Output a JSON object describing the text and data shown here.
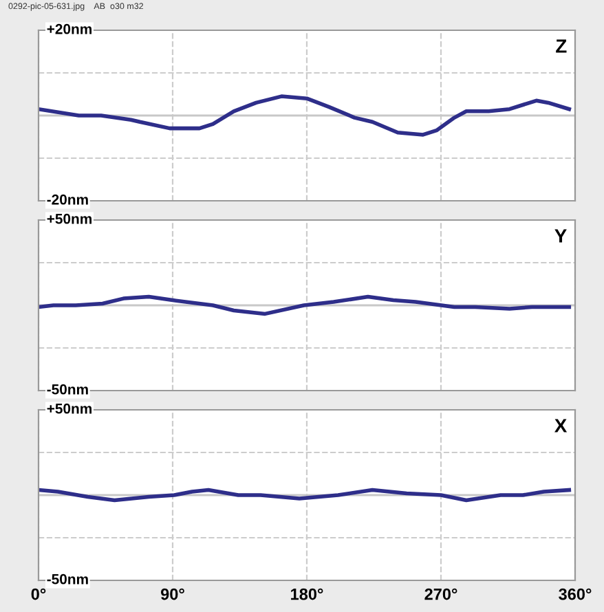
{
  "chart_data": [
    {
      "type": "line",
      "title": "Z",
      "annotations": [
        "0292-pic-05-631.jpg    AB  o30 m32"
      ],
      "tick_labels": "y",
      "grid": true,
      "xlim": [
        0,
        360
      ],
      "ylim": [
        -20,
        20
      ],
      "yticks": [
        {
          "value": 20,
          "label": "+20nm"
        },
        {
          "value": 10,
          "label": null
        },
        {
          "value": -10,
          "label": null
        },
        {
          "value": -20,
          "label": "-20nm"
        }
      ],
      "xticks": [
        {
          "value": 0,
          "label": null
        },
        {
          "value": 90,
          "label": null
        },
        {
          "value": 180,
          "label": null
        },
        {
          "value": 270,
          "label": null
        },
        {
          "value": 360,
          "label": null
        }
      ],
      "ref_lines": [
        {
          "axis": "y",
          "value": 0,
          "color": "#c8c8c8"
        }
      ],
      "x": [
        0,
        27,
        42,
        62,
        68,
        88,
        108,
        117,
        131,
        146,
        163,
        180,
        195,
        212,
        224,
        241,
        258,
        267,
        279,
        287,
        302,
        316,
        334,
        342,
        356
      ],
      "series": [
        {
          "color": "#2e2e8a",
          "values": [
            1.5,
            0,
            0,
            -1,
            -1.5,
            -3,
            -3,
            -2,
            1,
            3,
            4.5,
            4,
            2,
            -0.5,
            -1.5,
            -4,
            -4.5,
            -3.5,
            -0.5,
            1,
            1,
            1.5,
            3.5,
            3,
            1.5
          ]
        }
      ]
    },
    {
      "type": "line",
      "title": "Y",
      "tick_labels": "y",
      "grid": true,
      "xlim": [
        0,
        360
      ],
      "ylim": [
        -50,
        50
      ],
      "yticks": [
        {
          "value": 50,
          "label": "+50nm"
        },
        {
          "value": 25,
          "label": null
        },
        {
          "value": -25,
          "label": null
        },
        {
          "value": -50,
          "label": "-50nm"
        }
      ],
      "xticks": [
        {
          "value": 0,
          "label": null
        },
        {
          "value": 90,
          "label": null
        },
        {
          "value": 180,
          "label": null
        },
        {
          "value": 270,
          "label": null
        },
        {
          "value": 360,
          "label": null
        }
      ],
      "ref_lines": [
        {
          "axis": "y",
          "value": 0,
          "color": "#c8c8c8"
        }
      ],
      "x": [
        0,
        10,
        25,
        43,
        57,
        74,
        90,
        117,
        131,
        152,
        178,
        198,
        221,
        238,
        253,
        279,
        293,
        316,
        331,
        356
      ],
      "series": [
        {
          "color": "#2e2e8a",
          "values": [
            -1,
            0,
            0,
            1,
            4,
            5,
            3,
            0,
            -3,
            -5,
            0,
            2,
            5,
            3,
            2,
            -1,
            -1,
            -2,
            -1,
            -1
          ]
        }
      ]
    },
    {
      "type": "line",
      "title": "X",
      "grid": true,
      "xlim": [
        0,
        360
      ],
      "ylim": [
        -50,
        50
      ],
      "yticks": [
        {
          "value": 50,
          "label": "+50nm"
        },
        {
          "value": 25,
          "label": null
        },
        {
          "value": -25,
          "label": null
        },
        {
          "value": -50,
          "label": "-50nm"
        }
      ],
      "xticks": [
        {
          "value": 0,
          "label": "0°"
        },
        {
          "value": 90,
          "label": "90°"
        },
        {
          "value": 180,
          "label": "180°"
        },
        {
          "value": 270,
          "label": "270°"
        },
        {
          "value": 360,
          "label": "360°"
        }
      ],
      "ref_lines": [
        {
          "axis": "y",
          "value": 0,
          "color": "#c8c8c8"
        }
      ],
      "x": [
        0,
        13,
        33,
        51,
        74,
        91,
        103,
        114,
        134,
        149,
        175,
        201,
        224,
        247,
        270,
        287,
        310,
        325,
        339,
        356
      ],
      "series": [
        {
          "color": "#2e2e8a",
          "values": [
            3,
            2,
            -1,
            -3,
            -1,
            0,
            2,
            3,
            0,
            0,
            -2,
            0,
            3,
            1,
            0,
            -3,
            0,
            0,
            2,
            3
          ]
        }
      ]
    }
  ]
}
